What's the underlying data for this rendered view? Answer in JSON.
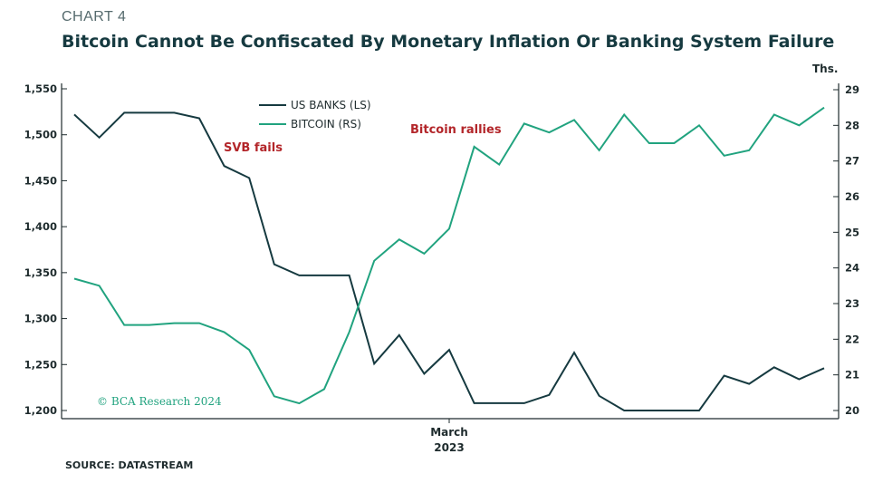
{
  "header": {
    "chart_number": "CHART 4",
    "title": "Bitcoin Cannot Be Confiscated By Monetary Inflation Or Banking System Failure"
  },
  "source": "SOURCE: DATASTREAM",
  "watermark": "© BCA Research 2024",
  "colors": {
    "us_banks": "#163a40",
    "bitcoin": "#21a37f",
    "annotation": "#b3262a",
    "axis": "#1e2b2d"
  },
  "chart_data": {
    "type": "line",
    "title": "Bitcoin Cannot Be Confiscated By Monetary Inflation Or Banking System Failure",
    "xlabel": "March\n2023",
    "x_label_line1": "March",
    "x_label_line2": "2023",
    "left_axis": {
      "range": [
        1200,
        1550
      ],
      "ticks": [
        "1,200",
        "1,250",
        "1,300",
        "1,350",
        "1,400",
        "1,450",
        "1,500",
        "1,550"
      ],
      "tick_values": [
        1200,
        1250,
        1300,
        1350,
        1400,
        1450,
        1500,
        1550
      ]
    },
    "right_axis": {
      "unit": "Ths.",
      "range": [
        20,
        29
      ],
      "ticks": [
        "20",
        "21",
        "22",
        "23",
        "24",
        "25",
        "26",
        "27",
        "28",
        "29"
      ],
      "tick_values": [
        20,
        21,
        22,
        23,
        24,
        25,
        26,
        27,
        28,
        29
      ]
    },
    "series": [
      {
        "name": "US BANKS (LS)",
        "axis": "left",
        "values": [
          1522,
          1497,
          1524,
          1524,
          1524,
          1518,
          1466,
          1453,
          1359,
          1347,
          1347,
          1347,
          1251,
          1282,
          1240,
          1266,
          1208,
          1208,
          1208,
          1217,
          1263,
          1216,
          1200,
          1200,
          1200,
          1200,
          1238,
          1229,
          1247,
          1234,
          1246
        ]
      },
      {
        "name": "BITCOIN (RS)",
        "axis": "right",
        "values": [
          23.7,
          23.5,
          22.4,
          22.4,
          22.45,
          22.45,
          22.2,
          21.7,
          20.4,
          20.2,
          20.6,
          22.2,
          24.2,
          24.8,
          24.4,
          25.1,
          27.4,
          26.9,
          28.05,
          27.8,
          28.15,
          27.3,
          28.3,
          27.5,
          27.5,
          28.0,
          27.15,
          27.3,
          28.3,
          28.0,
          28.5
        ]
      }
    ],
    "annotations": [
      "SVB fails",
      "Bitcoin rallies"
    ],
    "legend": [
      "US BANKS (LS)",
      "BITCOIN (RS)"
    ]
  }
}
